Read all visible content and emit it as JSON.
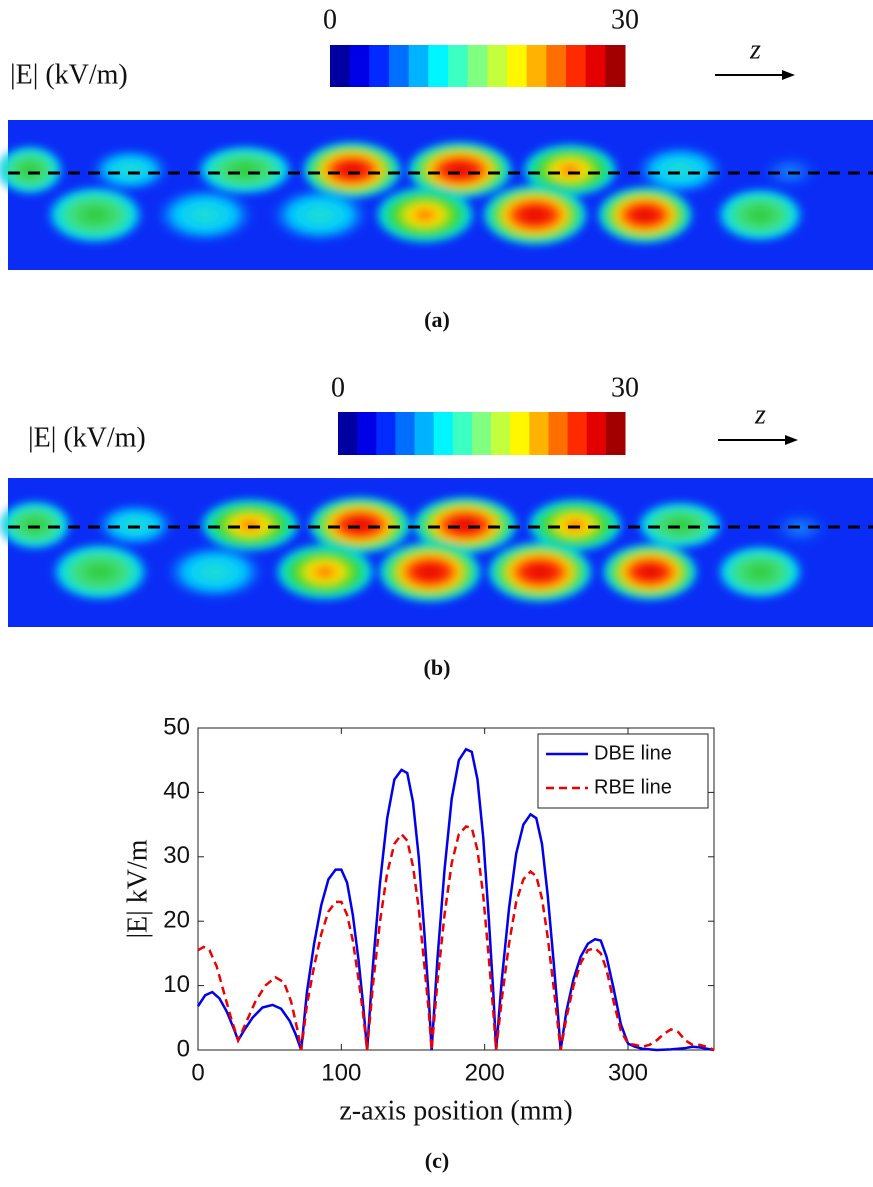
{
  "panels": [
    {
      "quantity": "|E|  (kV/m)",
      "axis": "z",
      "caption": "(a)",
      "colorbar": {
        "lim": [
          0,
          30
        ],
        "ticks": [
          0,
          30
        ]
      }
    },
    {
      "quantity": "|E|  (kV/m)",
      "axis": "z",
      "caption": "(b)",
      "colorbar": {
        "lim": [
          0,
          30
        ],
        "ticks": [
          0,
          30
        ]
      }
    }
  ],
  "chart_data": {
    "type": "line",
    "caption": "(c)",
    "xlabel": "z-axis position (mm)",
    "ylabel": "|E| kV/m",
    "xlim": [
      0,
      360
    ],
    "xticks": [
      0,
      100,
      200,
      300
    ],
    "ylim": [
      0,
      50
    ],
    "yticks": [
      0,
      10,
      20,
      30,
      40,
      50
    ],
    "legend": "top-right",
    "series": [
      {
        "name": "DBE line",
        "color": "#0000ee",
        "dash": "solid",
        "x": [
          0,
          5,
          10,
          15,
          20,
          25,
          28,
          32,
          38,
          45,
          52,
          58,
          64,
          68,
          72,
          76,
          81,
          86,
          91,
          96,
          100,
          104,
          108,
          112,
          115,
          118,
          122,
          127,
          132,
          137,
          142,
          146,
          150,
          154,
          158,
          161,
          163,
          167,
          172,
          177,
          182,
          187,
          191,
          195,
          199,
          203,
          206,
          208,
          212,
          217,
          222,
          227,
          232,
          236,
          240,
          244,
          248,
          251,
          253,
          257,
          262,
          267,
          272,
          277,
          281,
          285,
          290,
          295,
          300,
          305,
          310,
          320,
          330,
          340,
          345,
          350,
          355,
          360
        ],
        "values": [
          6.8,
          8.5,
          9,
          8,
          6,
          3.3,
          1.5,
          3,
          5,
          6.6,
          7,
          6.4,
          4.5,
          2.5,
          0,
          9,
          16.5,
          22.5,
          26.5,
          28,
          28,
          26,
          21,
          14,
          7.5,
          0,
          13,
          26,
          36,
          42,
          43.5,
          43,
          38.5,
          30,
          18,
          8,
          0,
          14,
          28,
          39,
          45,
          46.7,
          46.3,
          42,
          33,
          20,
          9,
          0,
          11,
          22,
          30.5,
          35,
          36.6,
          36,
          32,
          24,
          14,
          6,
          0,
          6,
          11,
          14.5,
          16.5,
          17.2,
          17,
          14.5,
          9.5,
          4,
          1,
          0.5,
          0.2,
          0,
          0.1,
          0.3,
          0.5,
          0.4,
          0.2,
          0
        ]
      },
      {
        "name": "RBE line",
        "color": "#ee0000",
        "dash": "dashed",
        "x": [
          0,
          4,
          8,
          13,
          18,
          23,
          28,
          33,
          40,
          47,
          54,
          60,
          65,
          69,
          72,
          76,
          81,
          86,
          91,
          96,
          100,
          104,
          108,
          112,
          115,
          118,
          122,
          127,
          132,
          137,
          142,
          146,
          150,
          154,
          158,
          161,
          163,
          167,
          172,
          177,
          182,
          187,
          191,
          195,
          199,
          203,
          206,
          208,
          212,
          217,
          222,
          227,
          232,
          236,
          240,
          244,
          248,
          251,
          253,
          257,
          262,
          267,
          272,
          277,
          281,
          285,
          290,
          295,
          300,
          305,
          310,
          315,
          320,
          325,
          330,
          335,
          340,
          345,
          350,
          355,
          360
        ],
        "values": [
          15.5,
          16,
          15.5,
          13,
          9,
          5,
          1.5,
          4,
          7.5,
          10,
          11.3,
          10.5,
          7.5,
          3.5,
          0,
          7,
          13,
          18,
          21.5,
          23,
          23,
          21,
          17,
          11,
          6,
          0,
          10,
          20,
          27.5,
          32,
          33.5,
          32.5,
          28.5,
          22,
          13,
          6,
          0,
          10.5,
          21,
          29,
          33.5,
          34.7,
          34.5,
          31,
          24,
          14,
          6,
          0,
          8,
          16.5,
          23,
          26.5,
          27.7,
          27,
          23.5,
          17.5,
          10,
          4,
          0,
          5,
          10,
          13.5,
          15.5,
          15.8,
          15,
          12.5,
          7.5,
          3,
          1,
          0.8,
          0.5,
          0.8,
          1.5,
          2.5,
          3.2,
          2.8,
          1.5,
          0.8,
          0.8,
          0.5,
          0
        ]
      }
    ]
  }
}
